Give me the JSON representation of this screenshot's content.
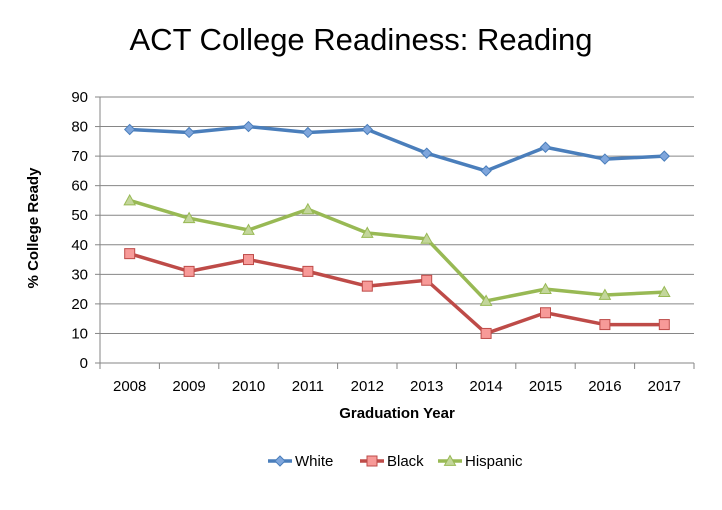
{
  "chart_data": {
    "type": "line",
    "title": "ACT College Readiness: Reading",
    "xlabel": "Graduation Year",
    "ylabel": "% College Ready",
    "ylim": [
      0,
      90
    ],
    "yticks": [
      0,
      10,
      20,
      30,
      40,
      50,
      60,
      70,
      80,
      90
    ],
    "grid": true,
    "legend_position": "bottom",
    "categories": [
      "2008",
      "2009",
      "2010",
      "2011",
      "2012",
      "2013",
      "2014",
      "2015",
      "2016",
      "2017"
    ],
    "series": [
      {
        "name": "White",
        "color": "#4a7ebb",
        "fill": "#7fa6dc",
        "marker": "diamond",
        "values": [
          79,
          78,
          80,
          78,
          79,
          71,
          65,
          73,
          69,
          70
        ]
      },
      {
        "name": "Black",
        "color": "#be4b48",
        "fill": "#f79a98",
        "marker": "square",
        "values": [
          37,
          31,
          35,
          31,
          26,
          28,
          10,
          17,
          13,
          13
        ]
      },
      {
        "name": "Hispanic",
        "color": "#98b954",
        "fill": "#c3d69b",
        "marker": "triangle",
        "values": [
          55,
          49,
          45,
          52,
          44,
          42,
          21,
          25,
          23,
          24
        ]
      }
    ]
  }
}
